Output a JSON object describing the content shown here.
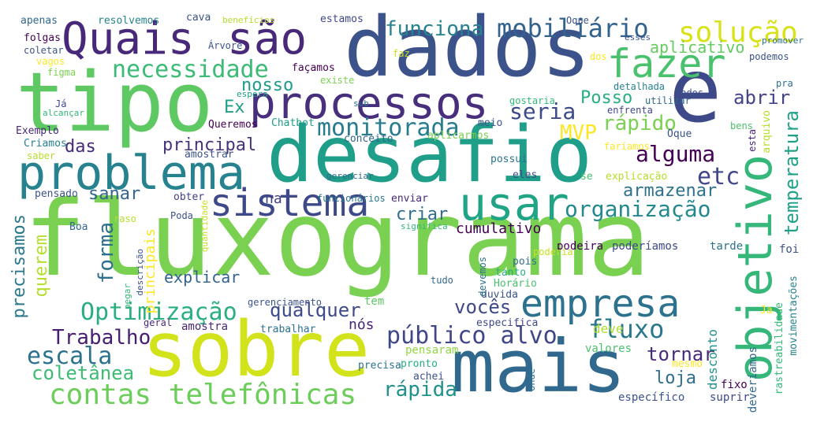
{
  "words": [
    {
      "text": "fluxograma",
      "color": "#7ad151"
    },
    {
      "text": "dados",
      "color": "#3b528b"
    },
    {
      "text": "desafio",
      "color": "#1f9e89"
    },
    {
      "text": "tipo",
      "color": "#5ec962"
    },
    {
      "text": "e",
      "color": "#3e4989"
    },
    {
      "text": "sobre",
      "color": "#d2e21b"
    },
    {
      "text": "mais",
      "color": "#31688e"
    },
    {
      "text": "Quais",
      "color": "#482878"
    },
    {
      "text": "são",
      "color": "#482878"
    },
    {
      "text": "problema",
      "color": "#26828e"
    },
    {
      "text": "processos",
      "color": "#472f7d"
    },
    {
      "text": "sistema",
      "color": "#3e4989"
    },
    {
      "text": "objetivo",
      "color": "#35b779"
    },
    {
      "text": "empresa",
      "color": "#2c728e"
    },
    {
      "text": "usar",
      "color": "#20a486"
    },
    {
      "text": "fazer",
      "color": "#4ac16d"
    },
    {
      "text": "solução",
      "color": "#d8e219"
    },
    {
      "text": "mobiliário",
      "color": "#33638d"
    },
    {
      "text": "funciona",
      "color": "#26828e"
    },
    {
      "text": "necessidade",
      "color": "#3bbb75"
    },
    {
      "text": "monitorada",
      "color": "#287c8e"
    },
    {
      "text": "contas telefônicas",
      "color": "#6ccd5a"
    },
    {
      "text": "público alvo",
      "color": "#3f4788"
    },
    {
      "text": "Optimização",
      "color": "#29af7f"
    },
    {
      "text": "Trabalho",
      "color": "#481f70"
    },
    {
      "text": "escala",
      "color": "#2c728e"
    },
    {
      "text": "coletânea",
      "color": "#3dbc74"
    },
    {
      "text": "fluxo",
      "color": "#2a788e"
    },
    {
      "text": "alguma",
      "color": "#440154"
    },
    {
      "text": "etc",
      "color": "#404688"
    },
    {
      "text": "rápido",
      "color": "#7ad151"
    },
    {
      "text": "seria",
      "color": "#3e4989"
    },
    {
      "text": "MVP",
      "color": "#fde725"
    },
    {
      "text": "organização",
      "color": "#23898e"
    },
    {
      "text": "armazenar",
      "color": "#2c728e"
    },
    {
      "text": "temperatura",
      "color": "#1fa187"
    },
    {
      "text": "aplicativo",
      "color": "#65cb5e"
    },
    {
      "text": "abrir",
      "color": "#414487"
    },
    {
      "text": "Posso",
      "color": "#29af7f"
    },
    {
      "text": "principal",
      "color": "#46337e"
    },
    {
      "text": "das",
      "color": "#472a7a"
    },
    {
      "text": "nosso",
      "color": "#1e9b8a"
    },
    {
      "text": "Ex",
      "color": "#1f9e89"
    },
    {
      "text": "forma",
      "color": "#2d708e"
    },
    {
      "text": "precisamos",
      "color": "#2a788e"
    },
    {
      "text": "querem",
      "color": "#b5de2b"
    },
    {
      "text": "sanar",
      "color": "#32648e"
    },
    {
      "text": "criar",
      "color": "#2e6e8e"
    },
    {
      "text": "qualquer",
      "color": "#3e4a89"
    },
    {
      "text": "vocês",
      "color": "#3f4889"
    },
    {
      "text": "cumulativo",
      "color": "#440154"
    },
    {
      "text": "tornar",
      "color": "#472c7a"
    },
    {
      "text": "loja",
      "color": "#2e6f8e"
    },
    {
      "text": "rápida",
      "color": "#21918c"
    },
    {
      "text": "desconto",
      "color": "#20928c"
    },
    {
      "text": "deve",
      "color": "#addc30"
    },
    {
      "text": "explicar",
      "color": "#33638d"
    },
    {
      "text": "principais",
      "color": "#fde725"
    },
    {
      "text": "na",
      "color": "#424086"
    },
    {
      "text": "nós",
      "color": "#482475"
    },
    {
      "text": "tem",
      "color": "#5ec962"
    },
    {
      "text": "gerenciamento",
      "color": "#3b528b"
    },
    {
      "text": "amostra",
      "color": "#482878"
    },
    {
      "text": "trabalhar",
      "color": "#2d708e"
    },
    {
      "text": "especifica",
      "color": "#3e4989"
    },
    {
      "text": "pensaram",
      "color": "#90d743"
    },
    {
      "text": "precisa",
      "color": "#2c728e"
    },
    {
      "text": "pronto",
      "color": "#27ad81"
    },
    {
      "text": "achei",
      "color": "#3b528b"
    },
    {
      "text": "valores",
      "color": "#4ac16d"
    },
    {
      "text": "mesmo",
      "color": "#fde725"
    },
    {
      "text": "onde",
      "color": "#2d708e"
    },
    {
      "text": "específico",
      "color": "#3b528b"
    },
    {
      "text": "suprir",
      "color": "#3e4989"
    },
    {
      "text": "fixo",
      "color": "#440154"
    },
    {
      "text": "deveríamos",
      "color": "#31688e"
    },
    {
      "text": "rastreabilidade",
      "color": "#35b779"
    },
    {
      "text": "movimentações",
      "color": "#26828e"
    },
    {
      "text": "Ja",
      "color": "#fde725"
    },
    {
      "text": "foi",
      "color": "#3b528b"
    },
    {
      "text": "tarde",
      "color": "#2c728e"
    },
    {
      "text": "poderíamos",
      "color": "#3e4989"
    },
    {
      "text": "podeira",
      "color": "#440154"
    },
    {
      "text": "poderia",
      "color": "#c8e020"
    },
    {
      "text": "pois",
      "color": "#2e6e8e"
    },
    {
      "text": "tanto",
      "color": "#29af7f"
    },
    {
      "text": "Horário",
      "color": "#4ac16d"
    },
    {
      "text": "duvida",
      "color": "#3b528b"
    },
    {
      "text": "devemos",
      "color": "#2d708e"
    },
    {
      "text": "tudo",
      "color": "#31688e"
    },
    {
      "text": "Poda",
      "color": "#3b528b"
    },
    {
      "text": "obter",
      "color": "#424086"
    },
    {
      "text": "raso",
      "color": "#b5de2b"
    },
    {
      "text": "quantidade",
      "color": "#c8e020"
    },
    {
      "text": "descrição",
      "color": "#3b528b"
    },
    {
      "text": "pegar",
      "color": "#35b779"
    },
    {
      "text": "geral",
      "color": "#482878"
    },
    {
      "text": "Boa",
      "color": "#31688e"
    },
    {
      "text": "pensado",
      "color": "#3b528b"
    },
    {
      "text": "Criamos",
      "color": "#26828e"
    },
    {
      "text": "saber",
      "color": "#b5de2b"
    },
    {
      "text": "Exemplo",
      "color": "#482878"
    },
    {
      "text": "Queremos",
      "color": "#440154"
    },
    {
      "text": "amostrar",
      "color": "#3b528b"
    },
    {
      "text": "Chatbot",
      "color": "#1f9e89"
    },
    {
      "text": "conceito",
      "color": "#33638d"
    },
    {
      "text": "aplicarmos",
      "color": "#7ad151"
    },
    {
      "text": "meio",
      "color": "#3b528b"
    },
    {
      "text": "possui",
      "color": "#2c728e"
    },
    {
      "text": "eles",
      "color": "#3e4989"
    },
    {
      "text": "gerenciar",
      "color": "#31688e"
    },
    {
      "text": "funcionários",
      "color": "#2a788e"
    },
    {
      "text": "enviar",
      "color": "#482878"
    },
    {
      "text": "significa",
      "color": "#35b779"
    },
    {
      "text": "se",
      "color": "#4ac16d"
    },
    {
      "text": "explicação",
      "color": "#b5de2b"
    },
    {
      "text": "faríamos",
      "color": "#fde725"
    },
    {
      "text": "Oque",
      "color": "#3b528b"
    },
    {
      "text": "bens",
      "color": "#4ac16d"
    },
    {
      "text": "esta",
      "color": "#482878"
    },
    {
      "text": "arquivo",
      "color": "#b5de2b"
    },
    {
      "text": "pra",
      "color": "#2d708e"
    },
    {
      "text": "enfrenta",
      "color": "#3e4989"
    },
    {
      "text": "todos",
      "color": "#3b528b"
    },
    {
      "text": "utilizar",
      "color": "#31688e"
    },
    {
      "text": "detalhada",
      "color": "#26828e"
    },
    {
      "text": "gostaria",
      "color": "#35b779"
    },
    {
      "text": "sub",
      "color": "#2c728e"
    },
    {
      "text": "existe",
      "color": "#7ad151"
    },
    {
      "text": "espera",
      "color": "#1f9e89"
    },
    {
      "text": "façamos",
      "color": "#440154"
    },
    {
      "text": "faz",
      "color": "#c8e020"
    },
    {
      "text": "dos",
      "color": "#fde725"
    },
    {
      "text": "podemos",
      "color": "#3b528b"
    },
    {
      "text": "promover",
      "color": "#2d708e"
    },
    {
      "text": "esses",
      "color": "#3b528b"
    },
    {
      "text": "Oque ",
      "color": "#3b528b"
    },
    {
      "text": "estamos",
      "color": "#3e4989"
    },
    {
      "text": "benefícios",
      "color": "#b5de2b"
    },
    {
      "text": "cava",
      "color": "#3b528b"
    },
    {
      "text": "resolvemos",
      "color": "#26828e"
    },
    {
      "text": "apenas",
      "color": "#31688e"
    },
    {
      "text": "folgas",
      "color": "#440154"
    },
    {
      "text": "coletar",
      "color": "#3b528b"
    },
    {
      "text": "vagos",
      "color": "#fde725"
    },
    {
      "text": "figma",
      "color": "#7ad151"
    },
    {
      "text": "Árvore",
      "color": "#3b528b"
    },
    {
      "text": "Já",
      "color": "#3e4989"
    },
    {
      "text": "alcançar",
      "color": "#35b779"
    }
  ]
}
